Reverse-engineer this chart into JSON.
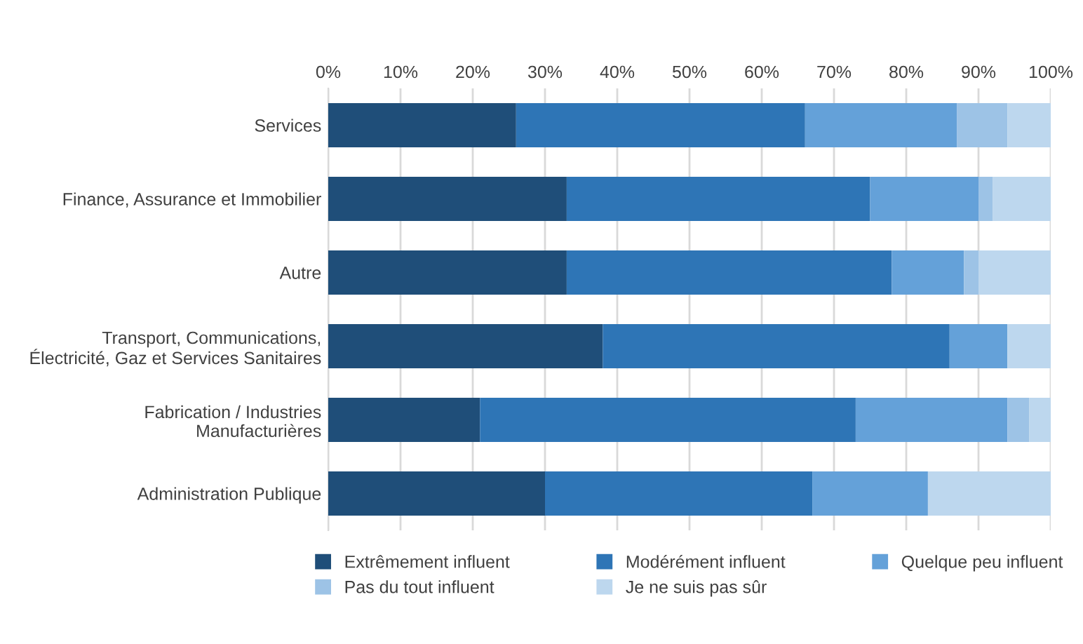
{
  "chart_data": {
    "type": "bar",
    "orientation": "horizontal",
    "stacked": true,
    "categories": [
      "Services",
      "Finance, Assurance et Immobilier",
      "Autre",
      "Transport, Communications,\nÉlectricité, Gaz et Services Sanitaires",
      "Fabrication / Industries\nManufacturières",
      "Administration Publique"
    ],
    "series": [
      {
        "name": "Extrêmement influent",
        "color": "#1f4e79",
        "values": [
          26,
          33,
          33,
          38,
          21,
          30
        ]
      },
      {
        "name": "Modérément influent",
        "color": "#2e75b6",
        "values": [
          40,
          42,
          45,
          48,
          52,
          37
        ]
      },
      {
        "name": "Quelque peu influent",
        "color": "#64a1d9",
        "values": [
          21,
          15,
          10,
          8,
          21,
          16
        ]
      },
      {
        "name": "Pas du tout influent",
        "color": "#9dc3e6",
        "values": [
          7,
          2,
          2,
          0,
          3,
          0
        ]
      },
      {
        "name": "Je ne suis pas sûr",
        "color": "#bdd7ee",
        "values": [
          6,
          8,
          10,
          6,
          3,
          17
        ]
      }
    ],
    "xlim": [
      0,
      100
    ],
    "xticks": [
      {
        "value": 0,
        "label": "0%"
      },
      {
        "value": 10,
        "label": "10%"
      },
      {
        "value": 20,
        "label": "20%"
      },
      {
        "value": 30,
        "label": "30%"
      },
      {
        "value": 40,
        "label": "40%"
      },
      {
        "value": 50,
        "label": "50%"
      },
      {
        "value": 60,
        "label": "60%"
      },
      {
        "value": 70,
        "label": "70%"
      },
      {
        "value": 80,
        "label": "80%"
      },
      {
        "value": 90,
        "label": "90%"
      },
      {
        "value": 100,
        "label": "100%"
      }
    ],
    "grid": "x",
    "legend": "bottom"
  }
}
